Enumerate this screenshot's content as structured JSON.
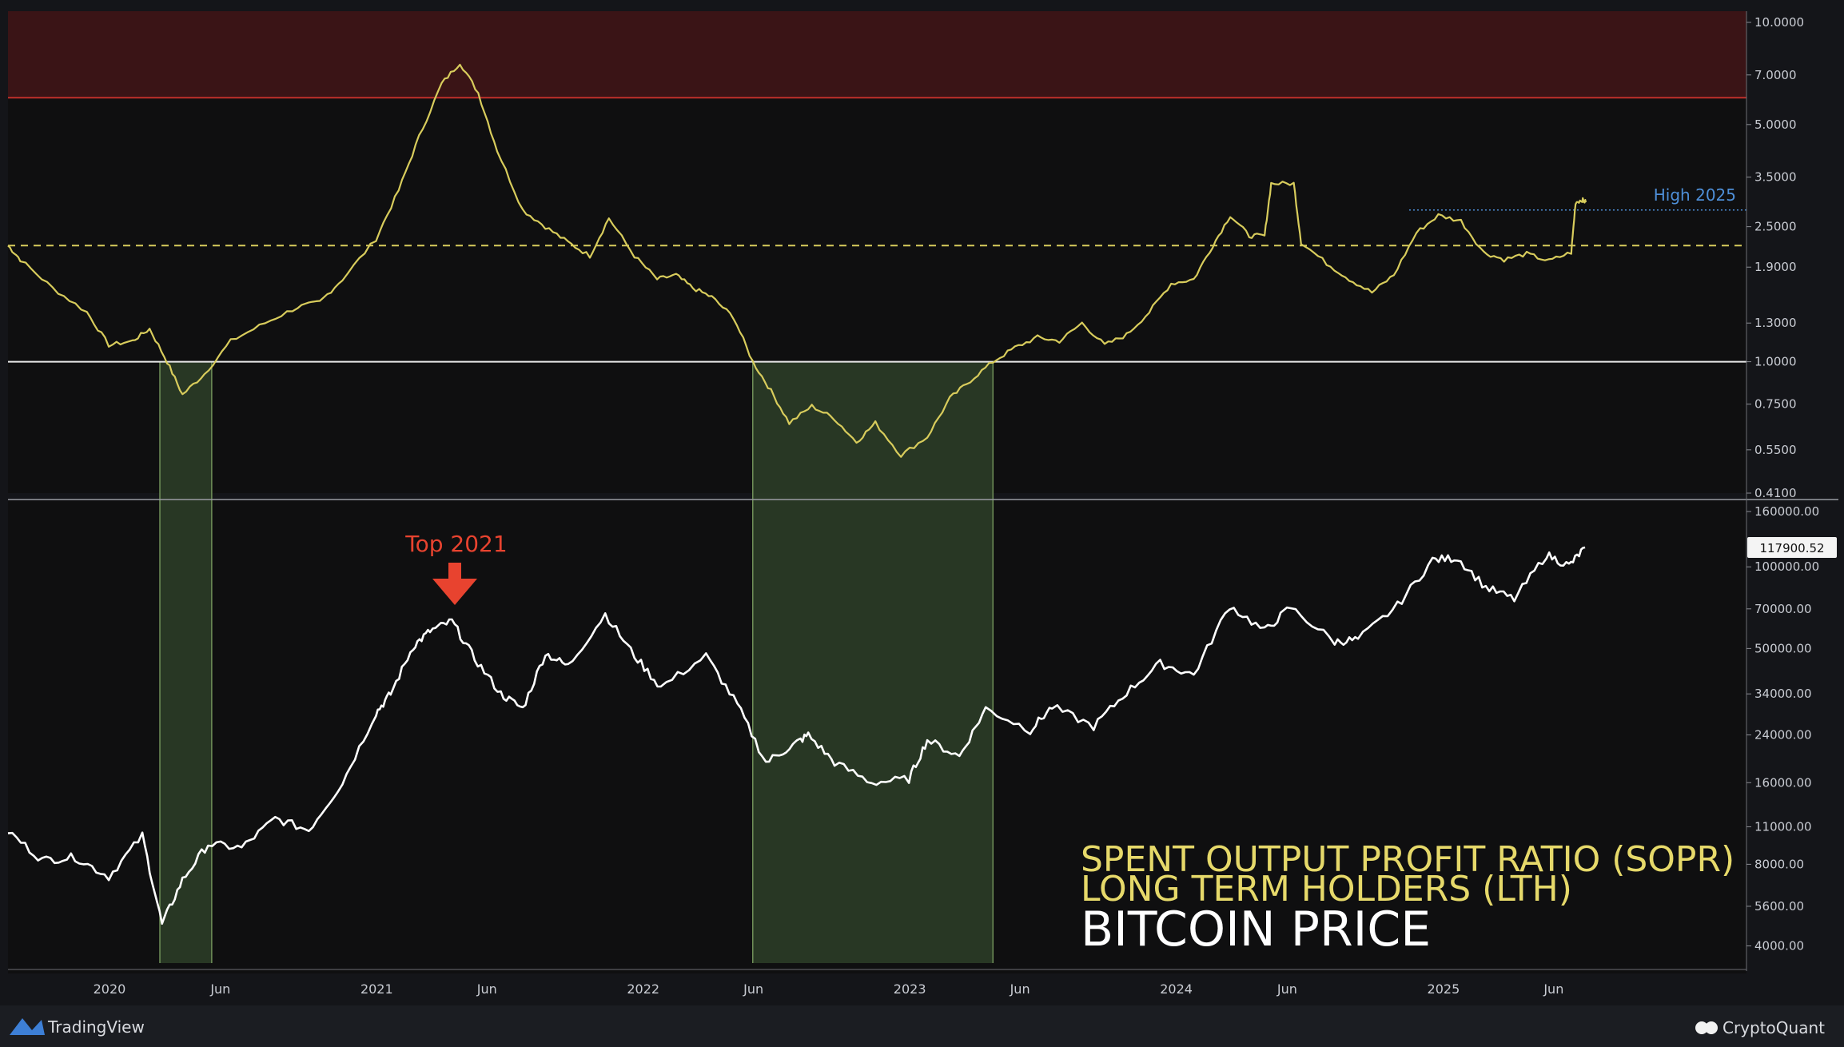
{
  "footer": {
    "tradingview_label": "TradingView",
    "cryptoquant_label": "CryptoQuant"
  },
  "chart_data": {
    "type": "line",
    "title": "",
    "legend": {
      "line1": "SPENT OUTPUT PROFIT RATIO (SOPR)",
      "line2": "LONG TERM HOLDERS (LTH)",
      "line3": "BITCOIN PRICE",
      "placement": "bottom-right"
    },
    "x_axis": {
      "ticks": [
        {
          "label": "2020",
          "date": "2020-01-01"
        },
        {
          "label": "Jun",
          "date": "2020-06-01"
        },
        {
          "label": "2021",
          "date": "2021-01-01"
        },
        {
          "label": "Jun",
          "date": "2021-06-01"
        },
        {
          "label": "2022",
          "date": "2022-01-01"
        },
        {
          "label": "Jun",
          "date": "2022-06-01"
        },
        {
          "label": "2023",
          "date": "2023-01-01"
        },
        {
          "label": "Jun",
          "date": "2023-06-01"
        },
        {
          "label": "2024",
          "date": "2024-01-01"
        },
        {
          "label": "Jun",
          "date": "2024-06-01"
        },
        {
          "label": "2025",
          "date": "2025-01-01"
        },
        {
          "label": "Jun",
          "date": "2025-06-01"
        }
      ],
      "range": [
        "2019-08-15",
        "2026-02-20"
      ]
    },
    "sopr_panel": {
      "scale": "log",
      "ylim": [
        0.41,
        10.0
      ],
      "ticks": [
        "10.0000",
        "7.0000",
        "5.0000",
        "3.5000",
        "2.5000",
        "1.9000",
        "1.3000",
        "1.0000",
        "0.7500",
        "0.5500",
        "0.4100"
      ],
      "red_zone_from": 6.0,
      "dashed_reference": 2.2,
      "solid_reference": 1.0,
      "high_2025": {
        "label": "High 2025",
        "value": 2.8,
        "from": "2024-11-15"
      },
      "color": "#d8cc5c",
      "series": [
        {
          "date": "2019-08-15",
          "value": 2.2
        },
        {
          "date": "2019-09-01",
          "value": 2.0
        },
        {
          "date": "2019-10-15",
          "value": 1.65
        },
        {
          "date": "2019-12-01",
          "value": 1.4
        },
        {
          "date": "2019-12-31",
          "value": 1.12
        },
        {
          "date": "2020-02-01",
          "value": 1.15
        },
        {
          "date": "2020-02-25",
          "value": 1.25
        },
        {
          "date": "2020-03-20",
          "value": 1.0
        },
        {
          "date": "2020-04-10",
          "value": 0.8
        },
        {
          "date": "2020-05-10",
          "value": 0.92
        },
        {
          "date": "2020-06-15",
          "value": 1.15
        },
        {
          "date": "2020-08-01",
          "value": 1.3
        },
        {
          "date": "2020-09-15",
          "value": 1.45
        },
        {
          "date": "2020-10-15",
          "value": 1.5
        },
        {
          "date": "2020-11-15",
          "value": 1.75
        },
        {
          "date": "2020-12-31",
          "value": 2.3
        },
        {
          "date": "2021-01-31",
          "value": 3.2
        },
        {
          "date": "2021-02-28",
          "value": 4.6
        },
        {
          "date": "2021-03-31",
          "value": 6.6
        },
        {
          "date": "2021-04-25",
          "value": 7.6
        },
        {
          "date": "2021-05-20",
          "value": 6.2
        },
        {
          "date": "2021-06-15",
          "value": 4.2
        },
        {
          "date": "2021-07-20",
          "value": 2.8
        },
        {
          "date": "2021-08-20",
          "value": 2.5
        },
        {
          "date": "2021-09-20",
          "value": 2.25
        },
        {
          "date": "2021-10-20",
          "value": 2.05
        },
        {
          "date": "2021-11-15",
          "value": 2.65
        },
        {
          "date": "2021-12-20",
          "value": 2.05
        },
        {
          "date": "2022-01-20",
          "value": 1.75
        },
        {
          "date": "2022-02-15",
          "value": 1.8
        },
        {
          "date": "2022-03-10",
          "value": 1.65
        },
        {
          "date": "2022-04-05",
          "value": 1.55
        },
        {
          "date": "2022-05-05",
          "value": 1.35
        },
        {
          "date": "2022-05-31",
          "value": 1.0
        },
        {
          "date": "2022-06-25",
          "value": 0.82
        },
        {
          "date": "2022-07-20",
          "value": 0.66
        },
        {
          "date": "2022-08-20",
          "value": 0.74
        },
        {
          "date": "2022-09-20",
          "value": 0.68
        },
        {
          "date": "2022-10-20",
          "value": 0.58
        },
        {
          "date": "2022-11-15",
          "value": 0.66
        },
        {
          "date": "2022-12-20",
          "value": 0.53
        },
        {
          "date": "2023-01-25",
          "value": 0.6
        },
        {
          "date": "2023-02-25",
          "value": 0.78
        },
        {
          "date": "2023-03-25",
          "value": 0.88
        },
        {
          "date": "2023-04-25",
          "value": 1.0
        },
        {
          "date": "2023-05-25",
          "value": 1.1
        },
        {
          "date": "2023-06-25",
          "value": 1.18
        },
        {
          "date": "2023-07-25",
          "value": 1.15
        },
        {
          "date": "2023-08-25",
          "value": 1.3
        },
        {
          "date": "2023-09-25",
          "value": 1.12
        },
        {
          "date": "2023-10-25",
          "value": 1.2
        },
        {
          "date": "2023-11-25",
          "value": 1.4
        },
        {
          "date": "2023-12-25",
          "value": 1.7
        },
        {
          "date": "2024-01-25",
          "value": 1.75
        },
        {
          "date": "2024-02-20",
          "value": 2.2
        },
        {
          "date": "2024-03-15",
          "value": 2.7
        },
        {
          "date": "2024-04-10",
          "value": 2.35
        },
        {
          "date": "2024-05-01",
          "value": 2.35
        },
        {
          "date": "2024-05-10",
          "value": 3.35
        },
        {
          "date": "2024-06-10",
          "value": 3.35
        },
        {
          "date": "2024-06-20",
          "value": 2.25
        },
        {
          "date": "2024-07-25",
          "value": 1.95
        },
        {
          "date": "2024-08-25",
          "value": 1.75
        },
        {
          "date": "2024-09-25",
          "value": 1.6
        },
        {
          "date": "2024-10-25",
          "value": 1.8
        },
        {
          "date": "2024-11-25",
          "value": 2.4
        },
        {
          "date": "2024-12-25",
          "value": 2.7
        },
        {
          "date": "2025-01-25",
          "value": 2.6
        },
        {
          "date": "2025-02-25",
          "value": 2.1
        },
        {
          "date": "2025-03-25",
          "value": 2.0
        },
        {
          "date": "2025-04-25",
          "value": 2.08
        },
        {
          "date": "2025-05-25",
          "value": 1.98
        },
        {
          "date": "2025-06-25",
          "value": 2.1
        },
        {
          "date": "2025-07-01",
          "value": 2.95
        },
        {
          "date": "2025-07-10",
          "value": 3.0
        },
        {
          "date": "2025-07-15",
          "value": 2.95
        }
      ]
    },
    "price_panel": {
      "scale": "log",
      "ylim": [
        3700,
        160000
      ],
      "ticks": [
        "160000.00",
        "100000.00",
        "70000.00",
        "50000.00",
        "34000.00",
        "24000.00",
        "16000.00",
        "11000.00",
        "8000.00",
        "5600.00",
        "4000.00"
      ],
      "last_value": "117900.52",
      "annotation": {
        "label": "Top 2021",
        "date": "2021-04-15"
      },
      "color": "#ffffff",
      "series": [
        {
          "date": "2019-08-15",
          "value": 10600
        },
        {
          "date": "2019-10-01",
          "value": 8300
        },
        {
          "date": "2019-11-15",
          "value": 8500
        },
        {
          "date": "2019-12-31",
          "value": 7200
        },
        {
          "date": "2020-02-15",
          "value": 10200
        },
        {
          "date": "2020-03-13",
          "value": 4800
        },
        {
          "date": "2020-04-10",
          "value": 7000
        },
        {
          "date": "2020-05-15",
          "value": 9500
        },
        {
          "date": "2020-06-30",
          "value": 9200
        },
        {
          "date": "2020-08-15",
          "value": 11800
        },
        {
          "date": "2020-09-30",
          "value": 10700
        },
        {
          "date": "2020-11-15",
          "value": 16000
        },
        {
          "date": "2020-12-31",
          "value": 29000
        },
        {
          "date": "2021-01-20",
          "value": 34000
        },
        {
          "date": "2021-02-20",
          "value": 51000
        },
        {
          "date": "2021-03-15",
          "value": 58000
        },
        {
          "date": "2021-04-14",
          "value": 63000
        },
        {
          "date": "2021-05-15",
          "value": 46000
        },
        {
          "date": "2021-06-20",
          "value": 34000
        },
        {
          "date": "2021-07-20",
          "value": 30000
        },
        {
          "date": "2021-08-20",
          "value": 48000
        },
        {
          "date": "2021-09-20",
          "value": 43000
        },
        {
          "date": "2021-11-10",
          "value": 67000
        },
        {
          "date": "2021-12-20",
          "value": 47000
        },
        {
          "date": "2022-01-25",
          "value": 36000
        },
        {
          "date": "2022-03-28",
          "value": 47000
        },
        {
          "date": "2022-05-10",
          "value": 31000
        },
        {
          "date": "2022-06-18",
          "value": 19000
        },
        {
          "date": "2022-07-25",
          "value": 22000
        },
        {
          "date": "2022-08-15",
          "value": 24000
        },
        {
          "date": "2022-09-20",
          "value": 19000
        },
        {
          "date": "2022-11-10",
          "value": 16000
        },
        {
          "date": "2022-12-31",
          "value": 16500
        },
        {
          "date": "2023-01-25",
          "value": 23000
        },
        {
          "date": "2023-03-10",
          "value": 20000
        },
        {
          "date": "2023-04-15",
          "value": 30000
        },
        {
          "date": "2023-06-15",
          "value": 25000
        },
        {
          "date": "2023-07-15",
          "value": 30500
        },
        {
          "date": "2023-09-10",
          "value": 25800
        },
        {
          "date": "2023-10-25",
          "value": 34500
        },
        {
          "date": "2023-12-10",
          "value": 44000
        },
        {
          "date": "2024-01-25",
          "value": 40000
        },
        {
          "date": "2024-03-14",
          "value": 72000
        },
        {
          "date": "2024-05-01",
          "value": 58000
        },
        {
          "date": "2024-06-05",
          "value": 71000
        },
        {
          "date": "2024-08-05",
          "value": 53000
        },
        {
          "date": "2024-09-06",
          "value": 54000
        },
        {
          "date": "2024-10-30",
          "value": 72000
        },
        {
          "date": "2024-12-17",
          "value": 106000
        },
        {
          "date": "2025-01-20",
          "value": 108000
        },
        {
          "date": "2025-02-28",
          "value": 84000
        },
        {
          "date": "2025-04-08",
          "value": 76000
        },
        {
          "date": "2025-05-22",
          "value": 111000
        },
        {
          "date": "2025-06-22",
          "value": 101000
        },
        {
          "date": "2025-07-14",
          "value": 117900
        }
      ]
    },
    "shaded_regions": [
      {
        "from": "2020-03-10",
        "to": "2020-05-20"
      },
      {
        "from": "2022-05-31",
        "to": "2023-04-25"
      }
    ]
  }
}
